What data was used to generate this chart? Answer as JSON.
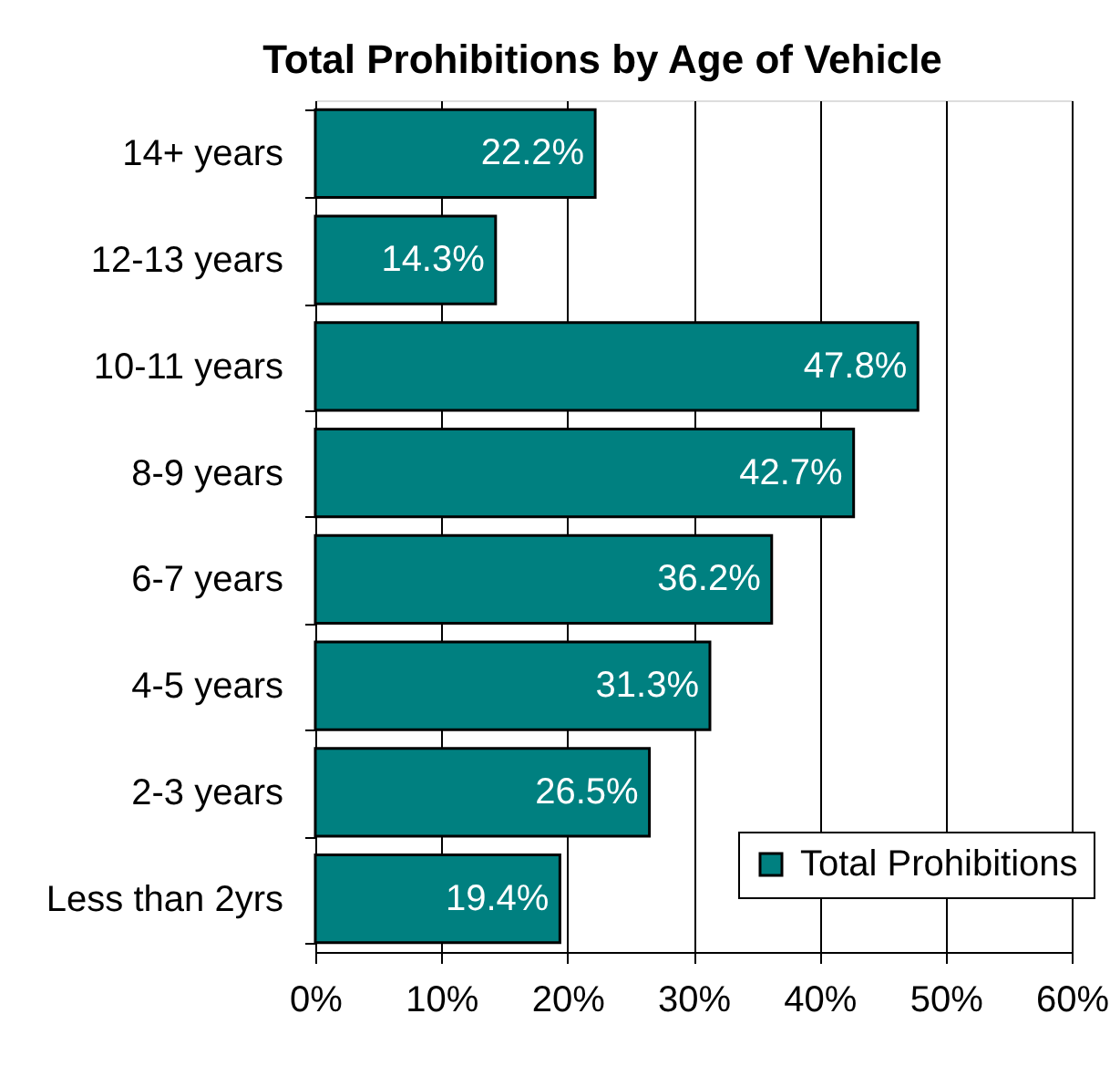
{
  "chart_data": {
    "type": "bar",
    "orientation": "horizontal",
    "title": "Total Prohibitions by Age of Vehicle",
    "categories": [
      "14+ years",
      "12-13 years",
      "10-11 years",
      "8-9 years",
      "6-7 years",
      "4-5 years",
      "2-3 years",
      "Less than 2yrs"
    ],
    "series": [
      {
        "name": "Total Prohibitions",
        "color": "#008080",
        "values": [
          22.2,
          14.3,
          47.8,
          42.7,
          36.2,
          31.3,
          26.5,
          19.4
        ],
        "value_labels": [
          "22.2%",
          "14.3%",
          "47.8%",
          "42.7%",
          "36.2%",
          "31.3%",
          "26.5%",
          "19.4%"
        ]
      }
    ],
    "xlim": [
      0,
      60
    ],
    "xticks": [
      {
        "value": 0,
        "label": "0%"
      },
      {
        "value": 10,
        "label": "10%"
      },
      {
        "value": 20,
        "label": "20%"
      },
      {
        "value": 30,
        "label": "30%"
      },
      {
        "value": 40,
        "label": "40%"
      },
      {
        "value": 50,
        "label": "50%"
      },
      {
        "value": 60,
        "label": "60%"
      }
    ],
    "grid": "x",
    "legend": "bottom right"
  }
}
